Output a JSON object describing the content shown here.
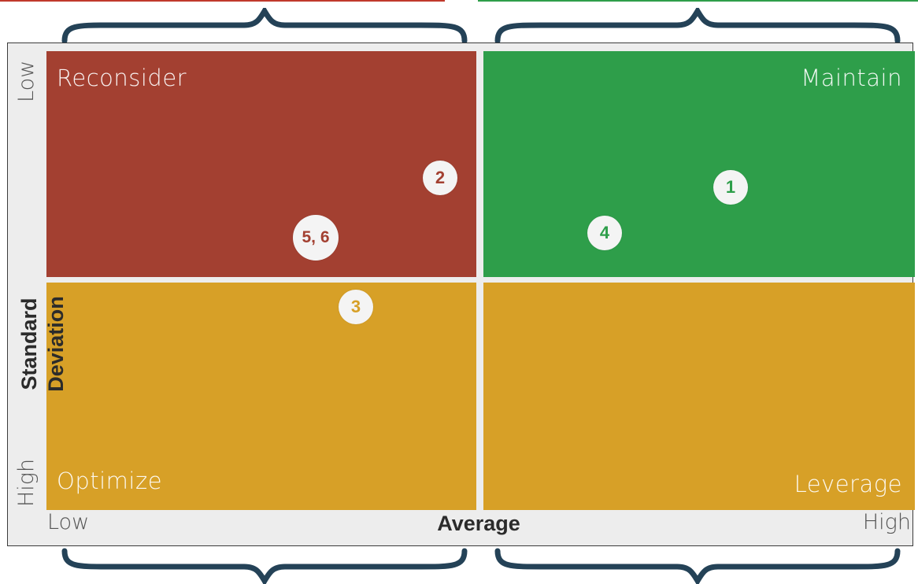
{
  "colors": {
    "reconsider": "#a34031",
    "maintain": "#2e9e4a",
    "optimize": "#d7a027",
    "leverage": "#d7a027",
    "brace": "#244257",
    "frame_bg": "#ededed"
  },
  "quadrants": {
    "top_left": "Reconsider",
    "top_right": "Maintain",
    "bottom_left": "Optimize",
    "bottom_right": "Leverage"
  },
  "axes": {
    "x_title": "Average",
    "x_low": "Low",
    "x_high": "High",
    "y_title": "Standard Deviation",
    "y_low": "Low",
    "y_high": "High"
  },
  "markers": [
    {
      "label": "1",
      "color": "#2e9e4a"
    },
    {
      "label": "2",
      "color": "#a34031"
    },
    {
      "label": "3",
      "color": "#d7a027"
    },
    {
      "label": "4",
      "color": "#2e9e4a"
    },
    {
      "label": "5, 6",
      "color": "#a34031"
    }
  ]
}
